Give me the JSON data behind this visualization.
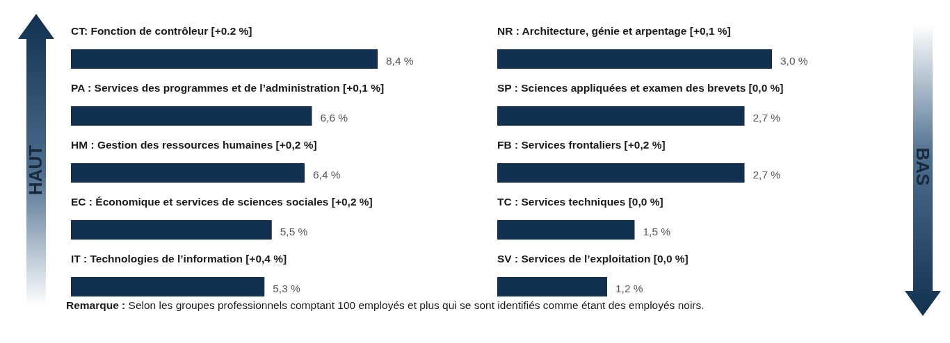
{
  "chart_data": [
    {
      "type": "bar",
      "orientation": "horizontal",
      "color": "#12304f",
      "categories": [
        "CT: Fonction de contrôleur  [+0.2 %]",
        "PA : Services des programmes et de l’administration [+0,1 %]",
        "HM : Gestion des ressources humaines [+0,2 %]",
        "EC : Économique et services de sciences sociales [+0,2 %]",
        "IT : Technologies de l’information [+0,4 %]"
      ],
      "values": [
        8.4,
        6.6,
        6.4,
        5.5,
        5.3
      ],
      "value_labels": [
        "8,4 %",
        "6,6 %",
        "6,4 %",
        "5,5 %",
        "5,3 %"
      ],
      "annotations": [
        "HAUT",
        "Remarque : Selon les groupes professionnels comptant 100 employés et plus qui se sont identifiés comme étant des employés noirs."
      ]
    },
    {
      "type": "bar",
      "orientation": "horizontal",
      "color": "#12304f",
      "categories": [
        "NR : Architecture, génie et arpentage [+0,1 %]",
        "SP : Sciences appliquées et examen des brevets [0,0 %]",
        "FB : Services frontaliers [+0,2 %]",
        "TC : Services techniques [0,0 %]",
        "SV : Services de l’exploitation [0,0 %]"
      ],
      "values": [
        3.0,
        2.7,
        2.7,
        1.5,
        1.2
      ],
      "value_labels": [
        "3,0 %",
        "2,7 %",
        "2,7 %",
        "1,5 %",
        "1,2 %"
      ],
      "annotations": [
        "BAS"
      ]
    }
  ]
}
